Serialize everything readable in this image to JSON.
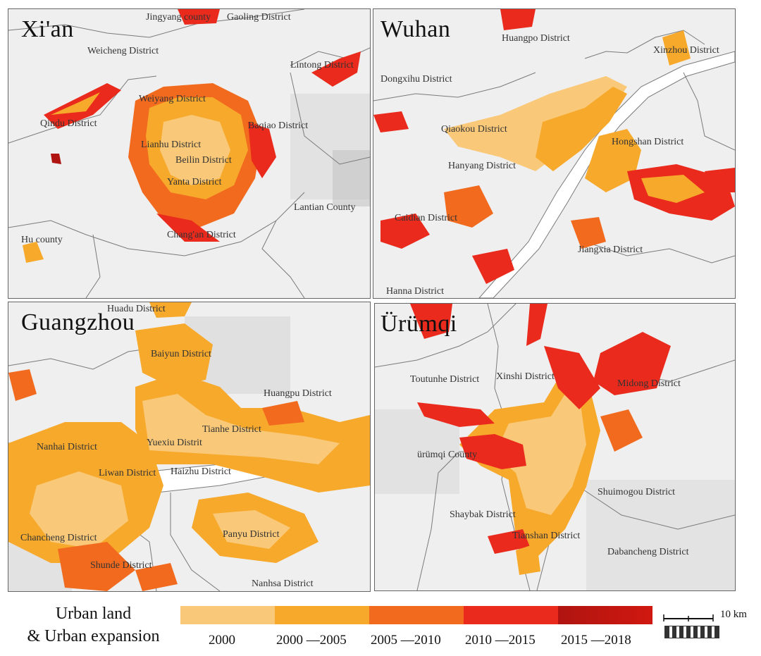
{
  "colors": {
    "c2000": "#f9c979",
    "c2000_2005": "#f7a92c",
    "c2005_2010": "#f26a1e",
    "c2010_2015": "#ea2a1c",
    "c2015_2018": "#b01410",
    "background": "#efefef",
    "boundary": "#7a7a7a"
  },
  "panels": [
    {
      "title": "Xi'an",
      "labels": [
        "Jingyang county",
        "Gaoling District",
        "Lintong District",
        "Weicheng District",
        "Weiyang District",
        "Baqiao District",
        "Qindu District",
        "Lianhu District",
        "Beilin District",
        "Yanta District",
        "Lantian County",
        "Hu county",
        "Chang'an District"
      ]
    },
    {
      "title": "Wuhan",
      "labels": [
        "Huangpo District",
        "Xinzhou District",
        "Dongxihu District",
        "Qiaokou District",
        "Hongshan District",
        "Hanyang District",
        "Caidian District",
        "Jiangxia District",
        "Hanna District"
      ]
    },
    {
      "title": "Guangzhou",
      "labels": [
        "Huadu District",
        "Baiyun District",
        "Huangpu District",
        "Tianhe District",
        "Nanhai District",
        "Yuexiu Distrit",
        "Liwan District",
        "Haizhu District",
        "Chancheng District",
        "Panyu District",
        "Shunde District",
        "Nanhsa District"
      ]
    },
    {
      "title": "Ürümqi",
      "labels": [
        "Toutunhe District",
        "Xinshi District",
        "Midong District",
        "ürümqi County",
        "Shuimogou District",
        "Shaybak District",
        "Tianshan District",
        "Dabancheng District"
      ]
    }
  ],
  "legend": {
    "title_line1": "Urban land",
    "title_line2": "& Urban expansion",
    "items": [
      "2000",
      "2000 —2005",
      "2005 —2010",
      "2010 —2015",
      "2015 —2018"
    ],
    "scale_text": "10 km"
  }
}
